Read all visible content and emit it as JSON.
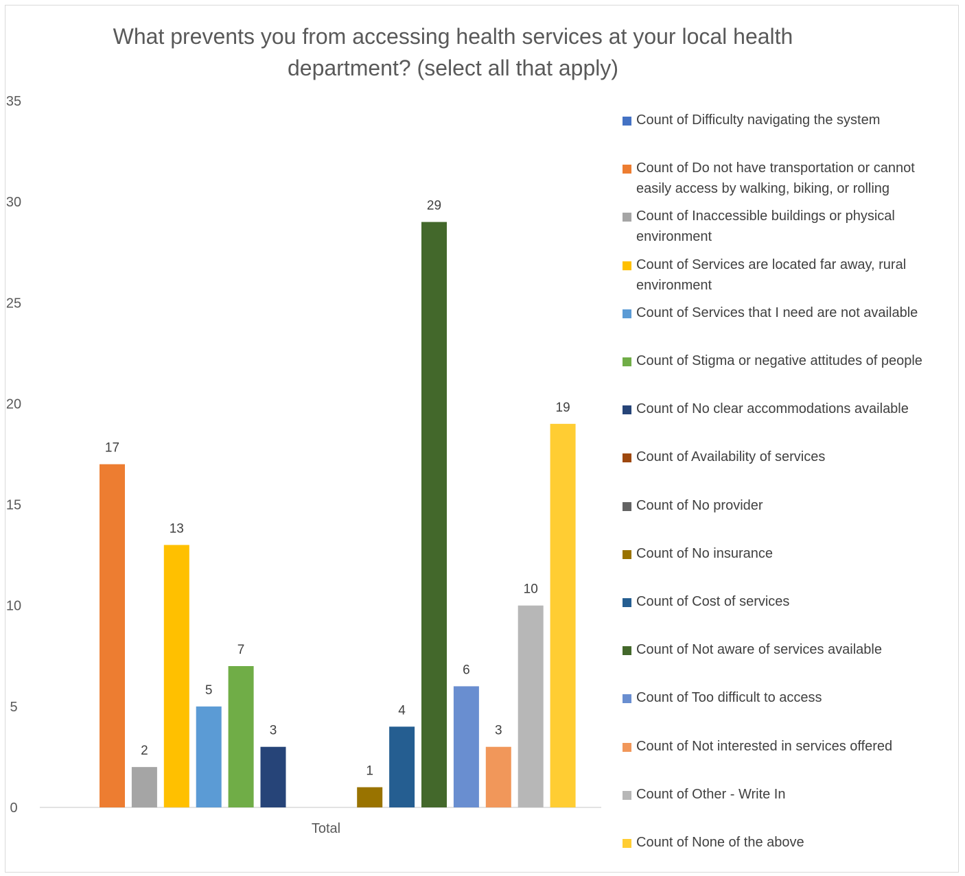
{
  "chart_data": {
    "type": "bar",
    "title": "What prevents you from accessing health services at your local health department? (select all that apply)",
    "categories": [
      "Total"
    ],
    "ylim": [
      0,
      35
    ],
    "yticks": [
      0,
      5,
      10,
      15,
      20,
      25,
      30,
      35
    ],
    "grid": false,
    "legend_position": "right",
    "series": [
      {
        "name": "Count of Difficulty navigating the system",
        "value": null,
        "color": "#4472C4"
      },
      {
        "name": "Count of Do not have transportation or cannot easily access by walking, biking, or rolling",
        "value": 17,
        "color": "#ED7D31"
      },
      {
        "name": "Count of Inaccessible buildings or physical environment",
        "value": 2,
        "color": "#A5A5A5"
      },
      {
        "name": "Count of Services are located far away, rural environment",
        "value": 13,
        "color": "#FFC000"
      },
      {
        "name": "Count of Services that I need are not available",
        "value": 5,
        "color": "#5B9BD5"
      },
      {
        "name": "Count of Stigma or negative attitudes of people",
        "value": 7,
        "color": "#70AD47"
      },
      {
        "name": "Count of No clear accommodations available",
        "value": 3,
        "color": "#264478"
      },
      {
        "name": "Count of Availability of services",
        "value": null,
        "color": "#9E480E"
      },
      {
        "name": "Count of No provider",
        "value": null,
        "color": "#636363"
      },
      {
        "name": "Count of No insurance",
        "value": 1,
        "color": "#997300"
      },
      {
        "name": "Count of Cost of services",
        "value": 4,
        "color": "#255E91"
      },
      {
        "name": "Count of Not aware of services available",
        "value": 29,
        "color": "#43682B"
      },
      {
        "name": "Count of Too difficult to access",
        "value": 6,
        "color": "#698ED0"
      },
      {
        "name": "Count of Not interested in services offered",
        "value": 3,
        "color": "#F1975A"
      },
      {
        "name": "Count of Other - Write In",
        "value": 10,
        "color": "#B7B7B7"
      },
      {
        "name": "Count of None of the above",
        "value": 19,
        "color": "#FFCD33"
      }
    ]
  }
}
